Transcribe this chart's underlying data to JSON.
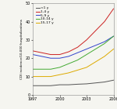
{
  "years": [
    1997,
    1998,
    1999,
    2000,
    2001,
    2002,
    2003,
    2004,
    2005,
    2006
  ],
  "series_order": [
    "<1 y",
    "1-4 y",
    "5-9 y",
    "10-14 y",
    "15-17 y"
  ],
  "series": {
    "<1 y": [
      5,
      5,
      5,
      5.5,
      5.5,
      5.8,
      6,
      6.5,
      7,
      8
    ],
    "1-4 y": [
      24,
      23,
      22,
      22,
      23.5,
      26,
      30,
      35,
      40,
      47
    ],
    "5-9 y": [
      22,
      21,
      20,
      20,
      21,
      23,
      25,
      27,
      29,
      32
    ],
    "10-14 y": [
      14,
      14,
      14,
      15,
      17,
      19,
      22,
      25,
      28,
      32
    ],
    "15-17 y": [
      10,
      10,
      10,
      11,
      12,
      13.5,
      15,
      18,
      21,
      25
    ]
  },
  "colors": {
    "<1 y": "#555555",
    "1-4 y": "#cc2222",
    "5-9 y": "#3344cc",
    "10-14 y": "#44aa33",
    "15-17 y": "#ddaa00"
  },
  "ylim": [
    0,
    50
  ],
  "yticks": [
    0,
    10,
    20,
    30,
    40,
    50
  ],
  "xticks": [
    1997,
    2000,
    2003,
    2006
  ],
  "ylabel": "CDI incidence/10,000 hospitalizations",
  "background_color": "#f5f5f0"
}
